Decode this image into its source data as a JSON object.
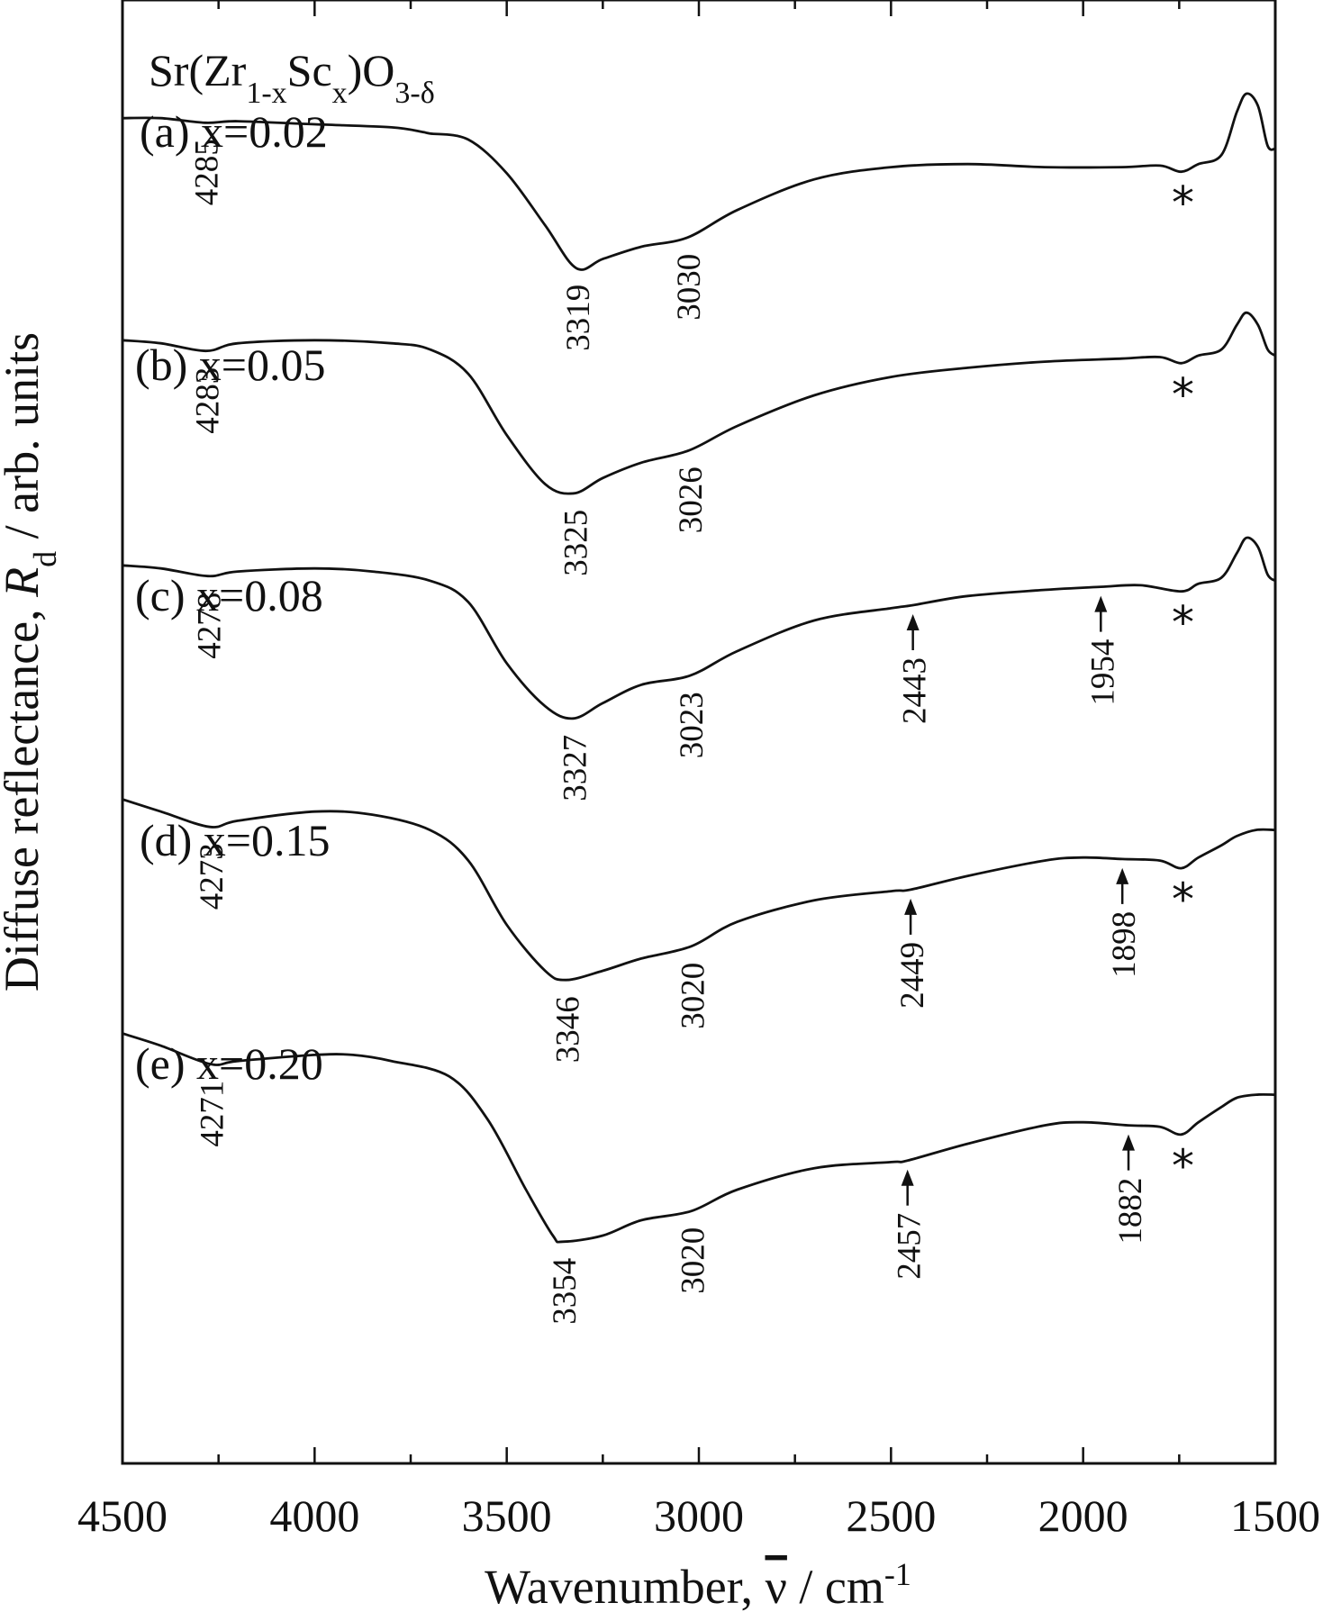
{
  "chart_data": {
    "type": "line",
    "title": "",
    "formula": {
      "main": "Sr(Zr",
      "sub1": "1-x",
      "mid": "Sc",
      "sub2": "x",
      "close": ")O",
      "sub3": "3-δ"
    },
    "xlabel": {
      "prefix": "Wavenumber, ",
      "symbol": "ν",
      "sep": "  /  cm",
      "exp": "-1"
    },
    "ylabel": {
      "prefix": "Diffuse reflectance, ",
      "symbol": "R",
      "sub": "d",
      "suffix": "  /  arb. units"
    },
    "xlim": [
      4500,
      1500
    ],
    "x_reversed": true,
    "y_ticks": "none",
    "x_ticks": [
      4500,
      4000,
      3500,
      3000,
      2500,
      2000,
      1500
    ],
    "x_tick_labels": [
      "4500",
      "4000",
      "3500",
      "3000",
      "2500",
      "2000",
      "1500"
    ],
    "series": [
      {
        "name": "(a) x=0.02",
        "points": [
          [
            4500,
            0.82
          ],
          [
            4400,
            0.82
          ],
          [
            4285,
            0.805
          ],
          [
            4200,
            0.81
          ],
          [
            4000,
            0.8
          ],
          [
            3800,
            0.79
          ],
          [
            3720,
            0.775
          ],
          [
            3700,
            0.77
          ],
          [
            3600,
            0.75
          ],
          [
            3500,
            0.64
          ],
          [
            3400,
            0.47
          ],
          [
            3319,
            0.33
          ],
          [
            3250,
            0.36
          ],
          [
            3150,
            0.4
          ],
          [
            3030,
            0.43
          ],
          [
            2900,
            0.52
          ],
          [
            2700,
            0.62
          ],
          [
            2500,
            0.66
          ],
          [
            2300,
            0.67
          ],
          [
            2100,
            0.66
          ],
          [
            1900,
            0.66
          ],
          [
            1800,
            0.665
          ],
          [
            1745,
            0.645
          ],
          [
            1700,
            0.67
          ],
          [
            1640,
            0.7
          ],
          [
            1600,
            0.84
          ],
          [
            1575,
            0.9
          ],
          [
            1545,
            0.86
          ],
          [
            1520,
            0.73
          ],
          [
            1500,
            0.72
          ]
        ],
        "peaks": [
          "4285",
          "3319",
          "3030"
        ],
        "arrow_peaks": [],
        "asterisk": "*"
      },
      {
        "name": "(b) x=0.05",
        "points": [
          [
            4500,
            0.83
          ],
          [
            4400,
            0.82
          ],
          [
            4283,
            0.795
          ],
          [
            4200,
            0.82
          ],
          [
            4000,
            0.83
          ],
          [
            3800,
            0.82
          ],
          [
            3700,
            0.8
          ],
          [
            3600,
            0.72
          ],
          [
            3500,
            0.52
          ],
          [
            3400,
            0.36
          ],
          [
            3325,
            0.33
          ],
          [
            3250,
            0.38
          ],
          [
            3150,
            0.43
          ],
          [
            3026,
            0.47
          ],
          [
            2900,
            0.55
          ],
          [
            2700,
            0.65
          ],
          [
            2500,
            0.71
          ],
          [
            2300,
            0.74
          ],
          [
            2100,
            0.76
          ],
          [
            1900,
            0.77
          ],
          [
            1800,
            0.775
          ],
          [
            1745,
            0.755
          ],
          [
            1700,
            0.78
          ],
          [
            1640,
            0.8
          ],
          [
            1600,
            0.88
          ],
          [
            1575,
            0.92
          ],
          [
            1545,
            0.88
          ],
          [
            1520,
            0.8
          ],
          [
            1500,
            0.78
          ]
        ],
        "peaks": [
          "4283",
          "3325",
          "3026"
        ],
        "arrow_peaks": [],
        "asterisk": "*"
      },
      {
        "name": "(c) x=0.08",
        "points": [
          [
            4500,
            0.83
          ],
          [
            4400,
            0.82
          ],
          [
            4278,
            0.795
          ],
          [
            4200,
            0.81
          ],
          [
            4000,
            0.82
          ],
          [
            3850,
            0.81
          ],
          [
            3700,
            0.78
          ],
          [
            3600,
            0.71
          ],
          [
            3500,
            0.51
          ],
          [
            3400,
            0.37
          ],
          [
            3327,
            0.33
          ],
          [
            3250,
            0.38
          ],
          [
            3150,
            0.44
          ],
          [
            3023,
            0.47
          ],
          [
            2900,
            0.55
          ],
          [
            2700,
            0.65
          ],
          [
            2500,
            0.69
          ],
          [
            2443,
            0.7
          ],
          [
            2300,
            0.73
          ],
          [
            2100,
            0.75
          ],
          [
            1954,
            0.76
          ],
          [
            1850,
            0.765
          ],
          [
            1745,
            0.745
          ],
          [
            1700,
            0.77
          ],
          [
            1640,
            0.79
          ],
          [
            1600,
            0.87
          ],
          [
            1575,
            0.92
          ],
          [
            1545,
            0.89
          ],
          [
            1520,
            0.8
          ],
          [
            1500,
            0.78
          ]
        ],
        "peaks": [
          "4278",
          "3327",
          "3023"
        ],
        "arrow_peaks": [
          "2443",
          "1954"
        ],
        "asterisk": "*"
      },
      {
        "name": "(d) x=0.15",
        "points": [
          [
            4500,
            0.86
          ],
          [
            4400,
            0.82
          ],
          [
            4273,
            0.77
          ],
          [
            4200,
            0.79
          ],
          [
            4000,
            0.82
          ],
          [
            3850,
            0.81
          ],
          [
            3700,
            0.76
          ],
          [
            3600,
            0.66
          ],
          [
            3500,
            0.45
          ],
          [
            3400,
            0.3
          ],
          [
            3346,
            0.27
          ],
          [
            3250,
            0.3
          ],
          [
            3150,
            0.34
          ],
          [
            3020,
            0.38
          ],
          [
            2900,
            0.46
          ],
          [
            2700,
            0.53
          ],
          [
            2500,
            0.56
          ],
          [
            2449,
            0.565
          ],
          [
            2300,
            0.61
          ],
          [
            2100,
            0.66
          ],
          [
            2000,
            0.67
          ],
          [
            1898,
            0.665
          ],
          [
            1800,
            0.66
          ],
          [
            1745,
            0.635
          ],
          [
            1700,
            0.67
          ],
          [
            1640,
            0.71
          ],
          [
            1600,
            0.74
          ],
          [
            1550,
            0.76
          ],
          [
            1500,
            0.76
          ]
        ],
        "peaks": [
          "4273",
          "3346",
          "3020"
        ],
        "arrow_peaks": [
          "2449",
          "1898"
        ],
        "asterisk": "*"
      },
      {
        "name": "(e) x=0.20",
        "points": [
          [
            4500,
            0.86
          ],
          [
            4400,
            0.82
          ],
          [
            4271,
            0.76
          ],
          [
            4200,
            0.77
          ],
          [
            4000,
            0.79
          ],
          [
            3900,
            0.79
          ],
          [
            3800,
            0.77
          ],
          [
            3650,
            0.72
          ],
          [
            3550,
            0.58
          ],
          [
            3450,
            0.35
          ],
          [
            3380,
            0.2
          ],
          [
            3354,
            0.18
          ],
          [
            3250,
            0.2
          ],
          [
            3150,
            0.25
          ],
          [
            3020,
            0.28
          ],
          [
            2900,
            0.35
          ],
          [
            2700,
            0.42
          ],
          [
            2500,
            0.44
          ],
          [
            2457,
            0.445
          ],
          [
            2300,
            0.5
          ],
          [
            2100,
            0.56
          ],
          [
            2000,
            0.57
          ],
          [
            1882,
            0.56
          ],
          [
            1800,
            0.555
          ],
          [
            1745,
            0.53
          ],
          [
            1700,
            0.57
          ],
          [
            1640,
            0.62
          ],
          [
            1600,
            0.65
          ],
          [
            1550,
            0.66
          ],
          [
            1500,
            0.66
          ]
        ],
        "peaks": [
          "4271",
          "3354",
          "3020"
        ],
        "arrow_peaks": [
          "2457",
          "1882"
        ],
        "asterisk": "*"
      }
    ]
  }
}
